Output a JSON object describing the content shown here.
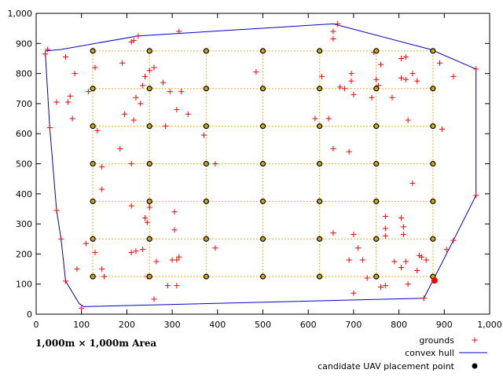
{
  "chart_data": {
    "type": "scatter",
    "area_label": "1,000m × 1,000m Area",
    "xlim": [
      0,
      1000
    ],
    "ylim": [
      0,
      1000
    ],
    "x_ticks": [
      0,
      100,
      200,
      300,
      400,
      500,
      600,
      700,
      800,
      900,
      1000
    ],
    "x_tick_labels": [
      "0",
      "100",
      "200",
      "300",
      "400",
      "500",
      "600",
      "700",
      "800",
      "900",
      "1,000"
    ],
    "y_ticks": [
      0,
      100,
      200,
      300,
      400,
      500,
      600,
      700,
      800,
      900,
      1000
    ],
    "y_tick_labels": [
      "0",
      "100",
      "200",
      "300",
      "400",
      "500",
      "600",
      "700",
      "800",
      "900",
      "1,000"
    ],
    "grid": false,
    "legend_position": "bottom-right",
    "legend": {
      "grounds": "grounds",
      "hull": "convex hull",
      "candidates": "candidate UAV placement point"
    },
    "colors": {
      "grounds": "#ff0000",
      "hull": "#0000cc",
      "candidates": "#000000",
      "candidate_fill": "#ccaa00",
      "grid_lines": "#e8a317",
      "highlight": "#ff0000"
    },
    "candidate_grid": {
      "xs": [
        125,
        250,
        375,
        500,
        625,
        750,
        875
      ],
      "ys": [
        125,
        250,
        375,
        500,
        625,
        750,
        875
      ]
    },
    "highlight_point": [
      875,
      125
    ],
    "hull": [
      [
        20,
        875
      ],
      [
        55,
        880
      ],
      [
        225,
        925
      ],
      [
        655,
        965
      ],
      [
        870,
        880
      ],
      [
        970,
        815
      ],
      [
        970,
        395
      ],
      [
        920,
        245
      ],
      [
        855,
        53
      ],
      [
        105,
        25
      ],
      [
        95,
        35
      ],
      [
        65,
        110
      ],
      [
        55,
        250
      ],
      [
        45,
        345
      ],
      [
        30,
        620
      ],
      [
        20,
        875
      ]
    ],
    "grounds": [
      [
        20,
        865
      ],
      [
        25,
        880
      ],
      [
        65,
        855
      ],
      [
        75,
        725
      ],
      [
        70,
        705
      ],
      [
        45,
        705
      ],
      [
        30,
        620
      ],
      [
        85,
        800
      ],
      [
        80,
        650
      ],
      [
        115,
        740
      ],
      [
        130,
        820
      ],
      [
        135,
        610
      ],
      [
        110,
        235
      ],
      [
        90,
        150
      ],
      [
        100,
        20
      ],
      [
        55,
        250
      ],
      [
        45,
        345
      ],
      [
        65,
        110
      ],
      [
        145,
        490
      ],
      [
        145,
        415
      ],
      [
        130,
        205
      ],
      [
        145,
        150
      ],
      [
        150,
        125
      ],
      [
        190,
        835
      ],
      [
        195,
        665
      ],
      [
        185,
        550
      ],
      [
        210,
        905
      ],
      [
        215,
        910
      ],
      [
        225,
        925
      ],
      [
        220,
        720
      ],
      [
        230,
        700
      ],
      [
        240,
        790
      ],
      [
        250,
        810
      ],
      [
        260,
        820
      ],
      [
        235,
        760
      ],
      [
        215,
        645
      ],
      [
        210,
        500
      ],
      [
        210,
        360
      ],
      [
        240,
        320
      ],
      [
        245,
        305
      ],
      [
        250,
        355
      ],
      [
        250,
        370
      ],
      [
        210,
        205
      ],
      [
        220,
        210
      ],
      [
        235,
        215
      ],
      [
        245,
        125
      ],
      [
        265,
        175
      ],
      [
        260,
        50
      ],
      [
        280,
        770
      ],
      [
        285,
        625
      ],
      [
        295,
        740
      ],
      [
        300,
        180
      ],
      [
        310,
        180
      ],
      [
        305,
        280
      ],
      [
        305,
        340
      ],
      [
        315,
        190
      ],
      [
        310,
        95
      ],
      [
        290,
        95
      ],
      [
        320,
        740
      ],
      [
        315,
        940
      ],
      [
        335,
        665
      ],
      [
        370,
        595
      ],
      [
        395,
        500
      ],
      [
        395,
        220
      ],
      [
        310,
        680
      ],
      [
        485,
        805
      ],
      [
        615,
        650
      ],
      [
        630,
        790
      ],
      [
        645,
        650
      ],
      [
        655,
        940
      ],
      [
        655,
        915
      ],
      [
        665,
        965
      ],
      [
        655,
        550
      ],
      [
        655,
        270
      ],
      [
        670,
        755
      ],
      [
        680,
        750
      ],
      [
        690,
        540
      ],
      [
        695,
        800
      ],
      [
        695,
        775
      ],
      [
        700,
        730
      ],
      [
        700,
        265
      ],
      [
        710,
        220
      ],
      [
        690,
        180
      ],
      [
        720,
        180
      ],
      [
        700,
        70
      ],
      [
        730,
        120
      ],
      [
        740,
        720
      ],
      [
        745,
        870
      ],
      [
        750,
        780
      ],
      [
        755,
        760
      ],
      [
        760,
        830
      ],
      [
        770,
        325
      ],
      [
        770,
        285
      ],
      [
        770,
        260
      ],
      [
        760,
        90
      ],
      [
        770,
        95
      ],
      [
        785,
        720
      ],
      [
        790,
        175
      ],
      [
        805,
        850
      ],
      [
        815,
        855
      ],
      [
        805,
        785
      ],
      [
        815,
        780
      ],
      [
        830,
        800
      ],
      [
        840,
        775
      ],
      [
        820,
        645
      ],
      [
        830,
        435
      ],
      [
        805,
        320
      ],
      [
        810,
        290
      ],
      [
        810,
        265
      ],
      [
        815,
        175
      ],
      [
        805,
        155
      ],
      [
        840,
        145
      ],
      [
        845,
        195
      ],
      [
        850,
        190
      ],
      [
        860,
        180
      ],
      [
        820,
        100
      ],
      [
        890,
        835
      ],
      [
        895,
        615
      ],
      [
        905,
        215
      ],
      [
        920,
        790
      ],
      [
        920,
        245
      ],
      [
        970,
        815
      ],
      [
        970,
        395
      ],
      [
        855,
        53
      ]
    ]
  }
}
